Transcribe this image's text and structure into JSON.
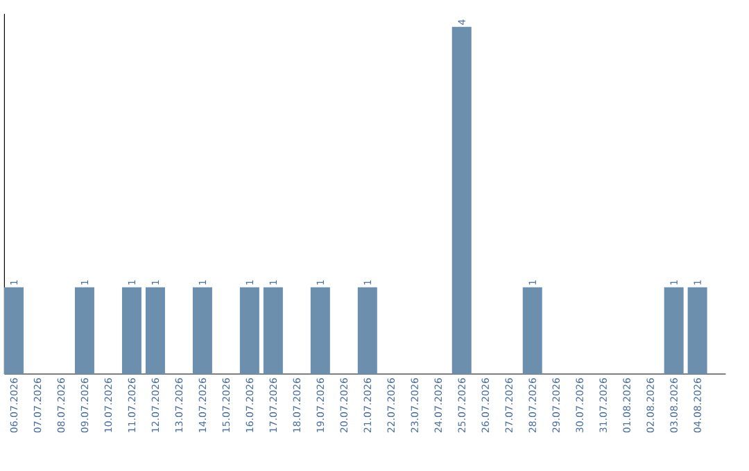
{
  "chart_data": {
    "type": "bar",
    "categories": [
      "06.07.2026",
      "07.07.2026",
      "08.07.2026",
      "09.07.2026",
      "10.07.2026",
      "11.07.2026",
      "12.07.2026",
      "13.07.2026",
      "14.07.2026",
      "15.07.2026",
      "16.07.2026",
      "17.07.2026",
      "18.07.2026",
      "19.07.2026",
      "20.07.2026",
      "21.07.2026",
      "22.07.2026",
      "23.07.2026",
      "24.07.2026",
      "25.07.2026",
      "26.07.2026",
      "27.07.2026",
      "28.07.2026",
      "29.07.2026",
      "30.07.2026",
      "31.07.2026",
      "01.08.2026",
      "02.08.2026",
      "03.08.2026",
      "04.08.2026"
    ],
    "values": [
      1,
      0,
      0,
      1,
      0,
      1,
      1,
      0,
      1,
      0,
      1,
      1,
      0,
      1,
      0,
      1,
      0,
      0,
      0,
      4,
      0,
      0,
      1,
      0,
      0,
      0,
      0,
      0,
      1,
      1
    ],
    "value_labels": [
      "1",
      null,
      null,
      "1",
      null,
      "1",
      "1",
      null,
      "1",
      null,
      "1",
      "1",
      null,
      "1",
      null,
      "1",
      null,
      null,
      null,
      "4",
      null,
      null,
      "1",
      null,
      null,
      null,
      null,
      null,
      "1",
      "1"
    ],
    "color": "#6d8fae",
    "ylim": [
      0,
      4.15
    ],
    "tick_labels": "x",
    "grid": false
  }
}
